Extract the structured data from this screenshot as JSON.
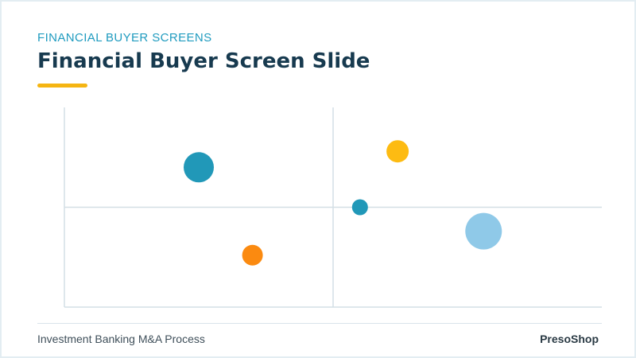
{
  "header": {
    "kicker": "FINANCIAL BUYER SCREENS",
    "title": "Financial Buyer Screen Slide"
  },
  "footer": {
    "left": "Investment Banking M&A Process",
    "right": "PresoShop"
  },
  "colors": {
    "accent_teal": "#1f9bbf",
    "accent_yellow": "#f5b512",
    "title_navy": "#173a4f",
    "axis_gray": "#d4dfe5"
  },
  "chart_data": {
    "type": "scatter",
    "title": "",
    "xlabel": "",
    "ylabel": "",
    "xlim": [
      0,
      100
    ],
    "ylim": [
      0,
      100
    ],
    "grid": false,
    "quadrant_dividers": {
      "x": 50,
      "y": 50
    },
    "points": [
      {
        "x": 25,
        "y": 70,
        "size": 19,
        "color": "#2198b8"
      },
      {
        "x": 62,
        "y": 78,
        "size": 14,
        "color": "#fdbb12"
      },
      {
        "x": 55,
        "y": 50,
        "size": 10,
        "color": "#2198b8"
      },
      {
        "x": 78,
        "y": 38,
        "size": 23,
        "color": "#8fc9e8"
      },
      {
        "x": 35,
        "y": 26,
        "size": 13,
        "color": "#fb8a10"
      }
    ]
  }
}
